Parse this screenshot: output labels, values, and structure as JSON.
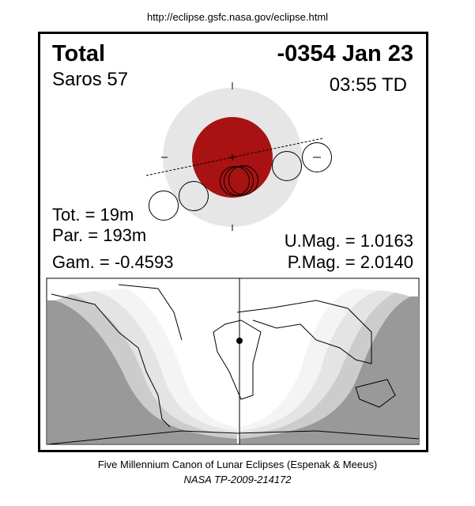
{
  "header_url": "http://eclipse.gsfc.nasa.gov/eclipse.html",
  "eclipse": {
    "type": "Total",
    "date": "-0354 Jan 23",
    "saros": "Saros  57",
    "time": "03:55 TD",
    "tot": "Tot. =  19m",
    "par": "Par. = 193m",
    "gam": "Gam. = -0.4593",
    "umag": "U.Mag. = 1.0163",
    "pmag": "P.Mag. = 2.0140"
  },
  "colors": {
    "umbra": "#a81212",
    "penumbra": "#e6e6e6",
    "night": "#999999",
    "zone1": "#cccccc",
    "zone2": "#e0e0e0",
    "zone3": "#f2f2f2"
  },
  "footer": {
    "line1": "Five Millennium Canon of Lunar Eclipses (Espenak & Meeus)",
    "line2": "NASA TP-2009-214172"
  }
}
